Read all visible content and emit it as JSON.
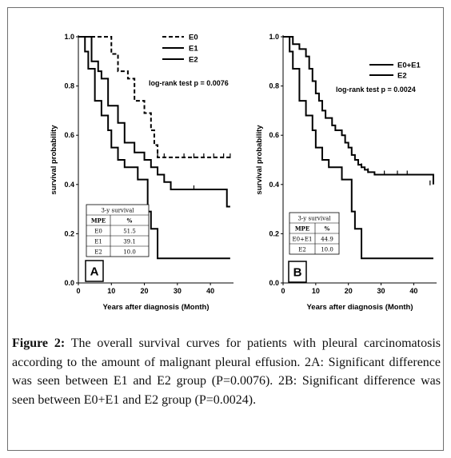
{
  "figure": {
    "caption_label": "Figure 2:",
    "caption_text": " The overall survival curves for patients with pleural carcinomatosis according to the amount of malignant pleural effusion. 2A: Significant difference was seen between E1 and E2 group (P=0.0076). 2B: Significant difference was seen between E0+E1 and E2 group (P=0.0024)."
  },
  "chart_data": [
    {
      "type": "line",
      "panel": "A",
      "xlabel": "Years after diagnosis (Month)",
      "ylabel": "survival probability",
      "xlim": [
        0,
        47
      ],
      "ylim": [
        0,
        1
      ],
      "xticks": [
        "0",
        "10",
        "20",
        "30",
        "40"
      ],
      "yticks": [
        "0.0",
        "0.2",
        "0.4",
        "0.6",
        "0.8",
        "1.0"
      ],
      "annotation": "log-rank test p = 0.0076",
      "legend_position": "top-right",
      "series": [
        {
          "name": "E0",
          "dash": true,
          "color": "#000000",
          "x": [
            0,
            10,
            12,
            15,
            17,
            20,
            22,
            23,
            24,
            46
          ],
          "y": [
            1.0,
            0.93,
            0.86,
            0.83,
            0.74,
            0.69,
            0.62,
            0.56,
            0.51,
            0.51
          ],
          "censor": [
            [
              24,
              0.51
            ],
            [
              26,
              0.51
            ],
            [
              32,
              0.51
            ],
            [
              35,
              0.51
            ],
            [
              38,
              0.51
            ],
            [
              41,
              0.51
            ],
            [
              44,
              0.51
            ],
            [
              46,
              0.51
            ]
          ]
        },
        {
          "name": "E1",
          "dash": false,
          "color": "#000000",
          "x": [
            0,
            4,
            6,
            7,
            9,
            12,
            14,
            17,
            20,
            22,
            24,
            26,
            28,
            45,
            46
          ],
          "y": [
            1.0,
            0.9,
            0.86,
            0.83,
            0.72,
            0.65,
            0.57,
            0.53,
            0.5,
            0.47,
            0.44,
            0.41,
            0.38,
            0.31,
            0.31
          ],
          "censor": [
            [
              28,
              0.38
            ],
            [
              35,
              0.38
            ]
          ]
        },
        {
          "name": "E2",
          "dash": false,
          "color": "#000000",
          "x": [
            0,
            2,
            3,
            5,
            7,
            9,
            10,
            12,
            14,
            18,
            21,
            22,
            24,
            46
          ],
          "y": [
            1.0,
            0.94,
            0.87,
            0.74,
            0.68,
            0.62,
            0.55,
            0.5,
            0.47,
            0.42,
            0.29,
            0.22,
            0.1,
            0.1
          ],
          "censor": []
        }
      ],
      "survival_table": {
        "title": "3-y survival",
        "headers": [
          "MPE",
          "%"
        ],
        "rows": [
          [
            "E0",
            "51.5"
          ],
          [
            "E1",
            "39.1"
          ],
          [
            "E2",
            "10.0"
          ]
        ]
      }
    },
    {
      "type": "line",
      "panel": "B",
      "xlabel": "Years after diagnosis (Month)",
      "ylabel": "survival probability",
      "xlim": [
        0,
        47
      ],
      "ylim": [
        0,
        1
      ],
      "xticks": [
        "0",
        "10",
        "20",
        "30",
        "40"
      ],
      "yticks": [
        "0.0",
        "0.2",
        "0.4",
        "0.6",
        "0.8",
        "1.0"
      ],
      "annotation": "log-rank test p = 0.0024",
      "legend_position": "top-right",
      "series": [
        {
          "name": "E0+E1",
          "dash": false,
          "color": "#000000",
          "x": [
            0,
            3,
            5,
            7,
            8,
            9,
            10,
            11,
            12,
            13,
            15,
            16,
            18,
            19,
            20,
            21,
            22,
            23,
            24,
            25,
            26,
            28,
            46
          ],
          "y": [
            1.0,
            0.97,
            0.95,
            0.92,
            0.87,
            0.82,
            0.77,
            0.74,
            0.7,
            0.67,
            0.64,
            0.62,
            0.6,
            0.57,
            0.55,
            0.52,
            0.5,
            0.48,
            0.47,
            0.46,
            0.45,
            0.44,
            0.4
          ],
          "censor": [
            [
              24,
              0.47
            ],
            [
              26,
              0.45
            ],
            [
              31,
              0.44
            ],
            [
              35,
              0.44
            ],
            [
              38,
              0.44
            ],
            [
              45,
              0.4
            ]
          ]
        },
        {
          "name": "E2",
          "dash": false,
          "color": "#000000",
          "x": [
            0,
            2,
            3,
            5,
            7,
            9,
            10,
            12,
            14,
            18,
            21,
            22,
            24,
            46
          ],
          "y": [
            1.0,
            0.94,
            0.87,
            0.74,
            0.68,
            0.62,
            0.55,
            0.5,
            0.47,
            0.42,
            0.29,
            0.22,
            0.1,
            0.1
          ],
          "censor": []
        }
      ],
      "survival_table": {
        "title": "3-y survival",
        "headers": [
          "MPE",
          "%"
        ],
        "rows": [
          [
            "E0+E1",
            "44.9"
          ],
          [
            "E2",
            "10.0"
          ]
        ]
      }
    }
  ]
}
